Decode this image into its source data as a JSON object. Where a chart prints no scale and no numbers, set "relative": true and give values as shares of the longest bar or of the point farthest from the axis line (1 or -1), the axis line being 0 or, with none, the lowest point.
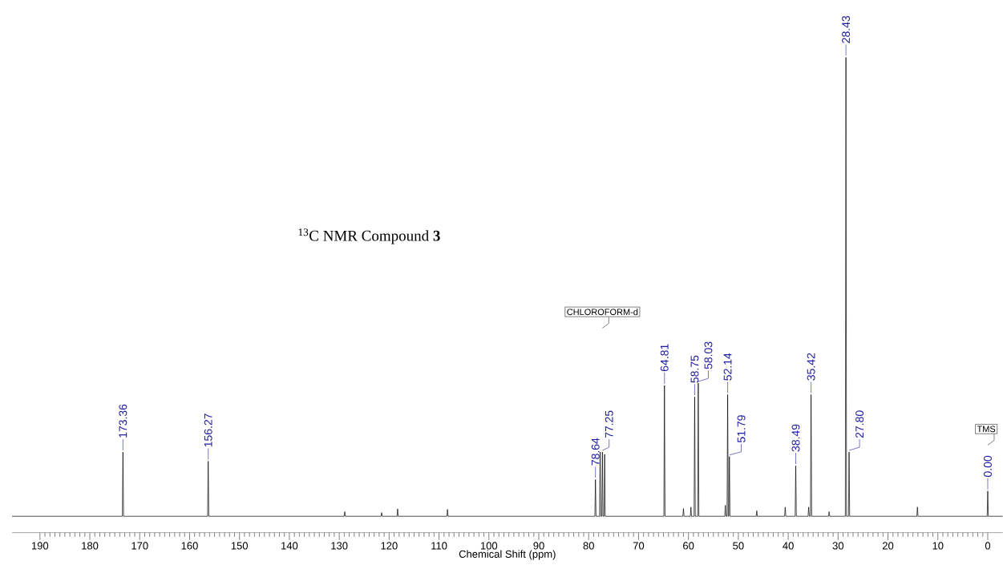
{
  "chart_data": {
    "type": "line",
    "title": "$^{13}$C NMR Compound **3**",
    "xlabel": "Chemical Shift (ppm)",
    "relative": true,
    "xlim": [
      195.6,
      -3
    ],
    "xticks": [
      190,
      180,
      170,
      160,
      150,
      140,
      130,
      120,
      110,
      100,
      90,
      80,
      70,
      60,
      50,
      40,
      30,
      20,
      10,
      0
    ],
    "series": [
      {
        "color": "#000000",
        "x": [
          195.6,
          173.48,
          173.36,
          173.24,
          156.39,
          156.27,
          156.15,
          129.02,
          128.9,
          128.78,
          121.62,
          121.5,
          121.38,
          118.42,
          118.3,
          118.18,
          108.42,
          108.3,
          108.18,
          78.76,
          78.64,
          78.52,
          77.82,
          77.7,
          77.58,
          77.37,
          77.25,
          77.13,
          76.92,
          76.8,
          76.68,
          64.93,
          64.81,
          64.69,
          61.12,
          61.0,
          60.88,
          59.62,
          59.5,
          59.38,
          58.87,
          58.75,
          58.63,
          58.15,
          58.03,
          57.91,
          52.72,
          52.6,
          52.48,
          52.26,
          52.14,
          52.02,
          51.91,
          51.79,
          51.67,
          46.42,
          46.3,
          46.18,
          40.72,
          40.6,
          40.48,
          38.61,
          38.49,
          38.37,
          36.02,
          35.9,
          35.78,
          35.54,
          35.42,
          35.3,
          31.92,
          31.8,
          31.68,
          28.55,
          28.43,
          28.31,
          27.92,
          27.8,
          27.68,
          14.22,
          14.1,
          13.98,
          0.12,
          0,
          -0.12,
          -3
        ],
        "values": [
          0,
          0,
          0.14,
          0,
          0,
          0.12,
          0,
          0,
          0.01,
          0,
          0,
          0.008,
          0,
          0,
          0.016,
          0,
          0,
          0.015,
          0,
          0,
          0.08,
          0,
          0,
          0.14,
          0,
          0,
          0.14,
          0,
          0,
          0.135,
          0,
          0,
          0.285,
          0,
          0,
          0.017,
          0,
          0,
          0.02,
          0,
          0,
          0.26,
          0,
          0,
          0.29,
          0,
          0,
          0.024,
          0,
          0,
          0.265,
          0,
          0,
          0.13,
          0,
          0,
          0.012,
          0,
          0,
          0.02,
          0,
          0,
          0.11,
          0,
          0,
          0.02,
          0,
          0,
          0.265,
          0,
          0,
          0.01,
          0,
          0,
          1,
          0,
          0,
          0.14,
          0,
          0,
          0.02,
          0,
          0,
          0.055,
          0,
          0
        ]
      }
    ],
    "annotations": [
      {
        "text": "173.36",
        "x": 173.36,
        "y": 0.14
      },
      {
        "text": "156.27",
        "x": 156.27,
        "y": 0.12
      },
      {
        "text": "78.64",
        "x": 78.64,
        "y": 0.08
      },
      {
        "text": "77.25",
        "x": 77.25,
        "y": 0.14
      },
      {
        "text": "64.81",
        "x": 64.81,
        "y": 0.285
      },
      {
        "text": "58.75",
        "x": 58.75,
        "y": 0.26
      },
      {
        "text": "58.03",
        "x": 58.03,
        "y": 0.29
      },
      {
        "text": "52.14",
        "x": 52.14,
        "y": 0.265
      },
      {
        "text": "51.79",
        "x": 51.79,
        "y": 0.13
      },
      {
        "text": "38.49",
        "x": 38.49,
        "y": 0.11
      },
      {
        "text": "35.42",
        "x": 35.42,
        "y": 0.265
      },
      {
        "text": "28.43",
        "x": 28.43,
        "y": 1
      },
      {
        "text": "27.80",
        "x": 27.8,
        "y": 0.14
      },
      {
        "text": "0.00",
        "x": 0,
        "y": 0.055
      },
      "CHLOROFORM-d",
      "TMS"
    ]
  }
}
